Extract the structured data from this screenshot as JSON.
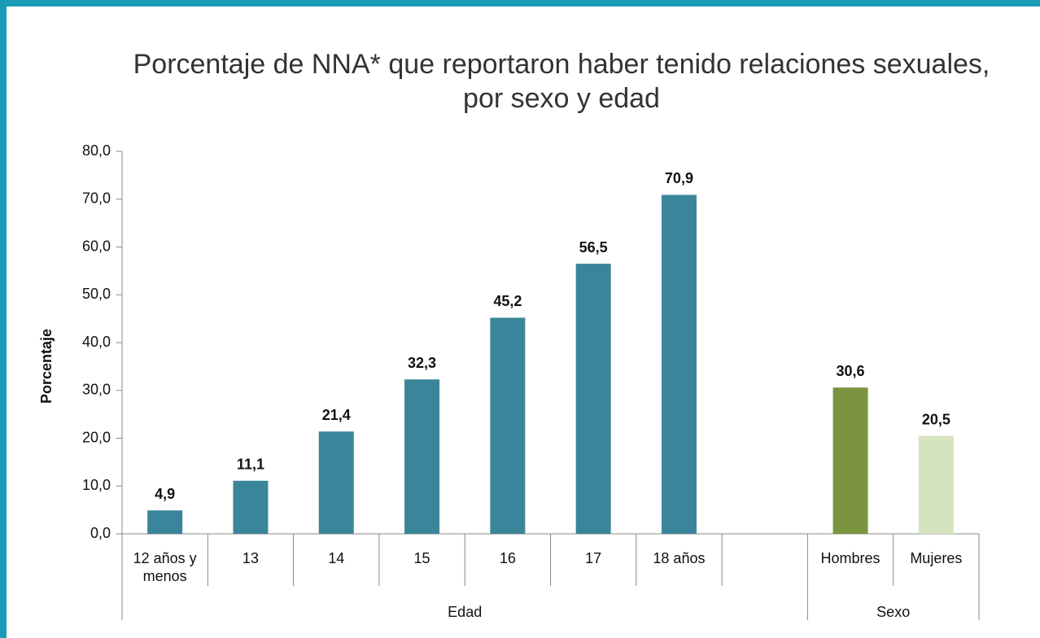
{
  "chart_data": {
    "type": "bar",
    "title": "Porcentaje de NNA* que reportaron haber tenido relaciones sexuales,\npor sexo y edad",
    "ylabel": "Porcentaje",
    "categories": [
      "12 años y menos",
      "13",
      "14",
      "15",
      "16",
      "17",
      "18 años",
      null,
      "Hombres",
      "Mujeres"
    ],
    "values": [
      4.9,
      11.1,
      21.4,
      32.3,
      45.2,
      56.5,
      70.9,
      null,
      30.6,
      20.5
    ],
    "value_labels": [
      "4,9",
      "11,1",
      "21,4",
      "32,3",
      "45,2",
      "56,5",
      "70,9",
      null,
      "30,6",
      "20,5"
    ],
    "colors": [
      "#3a8599",
      "#3a8599",
      "#3a8599",
      "#3a8599",
      "#3a8599",
      "#3a8599",
      "#3a8599",
      null,
      "#7a9440",
      "#d6e3bf"
    ],
    "groups": [
      {
        "label": "Edad"
      },
      {
        "label": "Sexo"
      }
    ],
    "ylim": [
      0,
      80
    ],
    "yticks": [
      {
        "value": 0,
        "label": "0,0"
      },
      {
        "value": 10,
        "label": "10,0"
      },
      {
        "value": 20,
        "label": "20,0"
      },
      {
        "value": 30,
        "label": "30,0"
      },
      {
        "value": 40,
        "label": "40,0"
      },
      {
        "value": 50,
        "label": "50,0"
      },
      {
        "value": 60,
        "label": "60,0"
      },
      {
        "value": 70,
        "label": "70,0"
      },
      {
        "value": 80,
        "label": "80,0"
      }
    ],
    "grid": false
  }
}
